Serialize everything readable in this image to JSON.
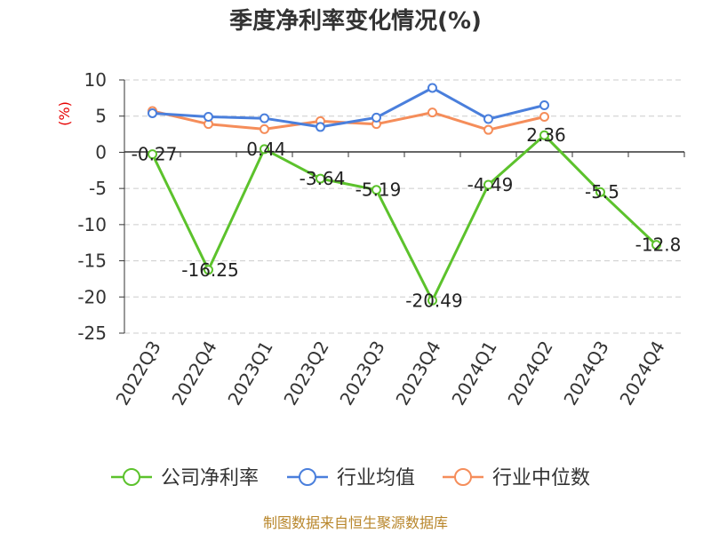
{
  "chart_data": {
    "type": "line",
    "title": "季度净利率变化情况(%)",
    "ylabel": "(%)",
    "ylim": [
      -25,
      10
    ],
    "yticks": [
      10,
      5,
      0,
      -5,
      -10,
      -15,
      -20,
      -25
    ],
    "grid": true,
    "legend_position": "bottom",
    "categories": [
      "2022Q3",
      "2022Q4",
      "2023Q1",
      "2023Q2",
      "2023Q3",
      "2023Q4",
      "2024Q1",
      "2024Q2",
      "2024Q3",
      "2024Q4"
    ],
    "series": [
      {
        "name": "公司净利率",
        "color": "#5cc22c",
        "values": [
          -0.27,
          -16.25,
          0.44,
          -3.64,
          -5.19,
          -20.49,
          -4.49,
          2.36,
          -5.5,
          -12.8
        ],
        "labels": [
          "-0.27",
          "-16.25",
          "0.44",
          "-3.64",
          "-5.19",
          "-20.49",
          "-4.49",
          "2.36",
          "-5.5",
          "-12.8"
        ]
      },
      {
        "name": "行业均值",
        "color": "#4a7fdc",
        "values": [
          5.4,
          4.9,
          4.7,
          3.5,
          4.8,
          8.9,
          4.6,
          6.5,
          null,
          null
        ]
      },
      {
        "name": "行业中位数",
        "color": "#f58d5a",
        "values": [
          5.7,
          3.9,
          3.2,
          4.3,
          3.9,
          5.5,
          3.1,
          4.9,
          null,
          null
        ]
      }
    ]
  },
  "footer": {
    "source": "制图数据来自恒生聚源数据库"
  }
}
